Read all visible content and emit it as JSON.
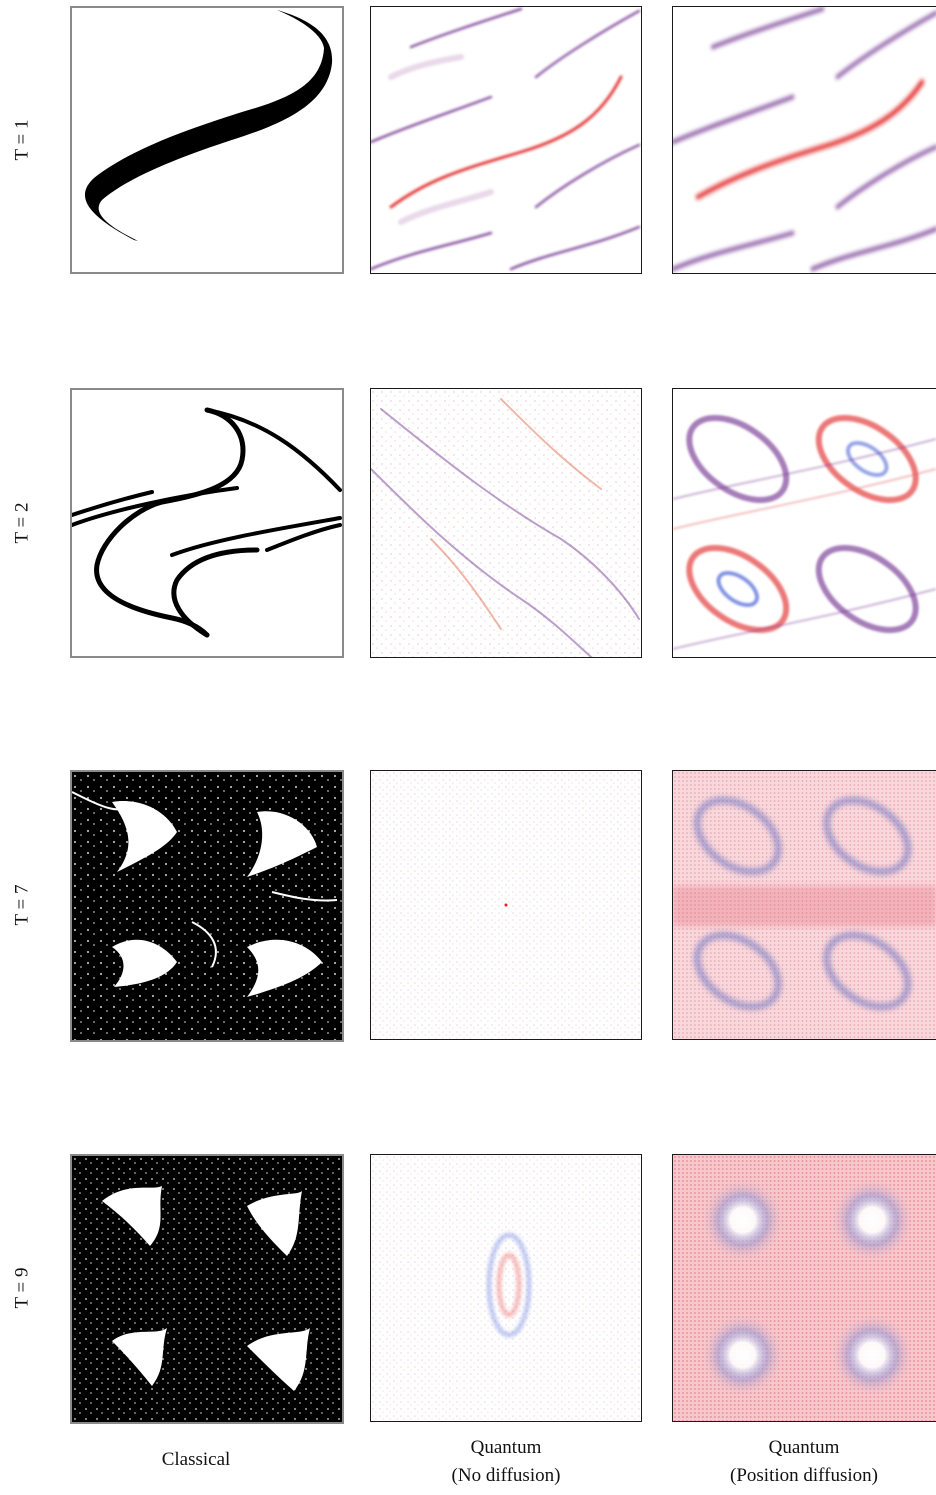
{
  "rows": [
    {
      "label": "T = 1"
    },
    {
      "label": "T = 2"
    },
    {
      "label": "T = 7"
    },
    {
      "label": "T = 9"
    }
  ],
  "columns": [
    {
      "line1": "Classical",
      "line2": ""
    },
    {
      "line1": "Quantum",
      "line2": "(No diffusion)"
    },
    {
      "line1": "Quantum",
      "line2": "(Position diffusion)"
    }
  ],
  "colors": {
    "classical_ink": "#000000",
    "quantum_red": "#e02020",
    "quantum_purple": "#6a2a8a",
    "quantum_blue": "#3050d0",
    "quantum_pink": "#f0a0b0"
  }
}
